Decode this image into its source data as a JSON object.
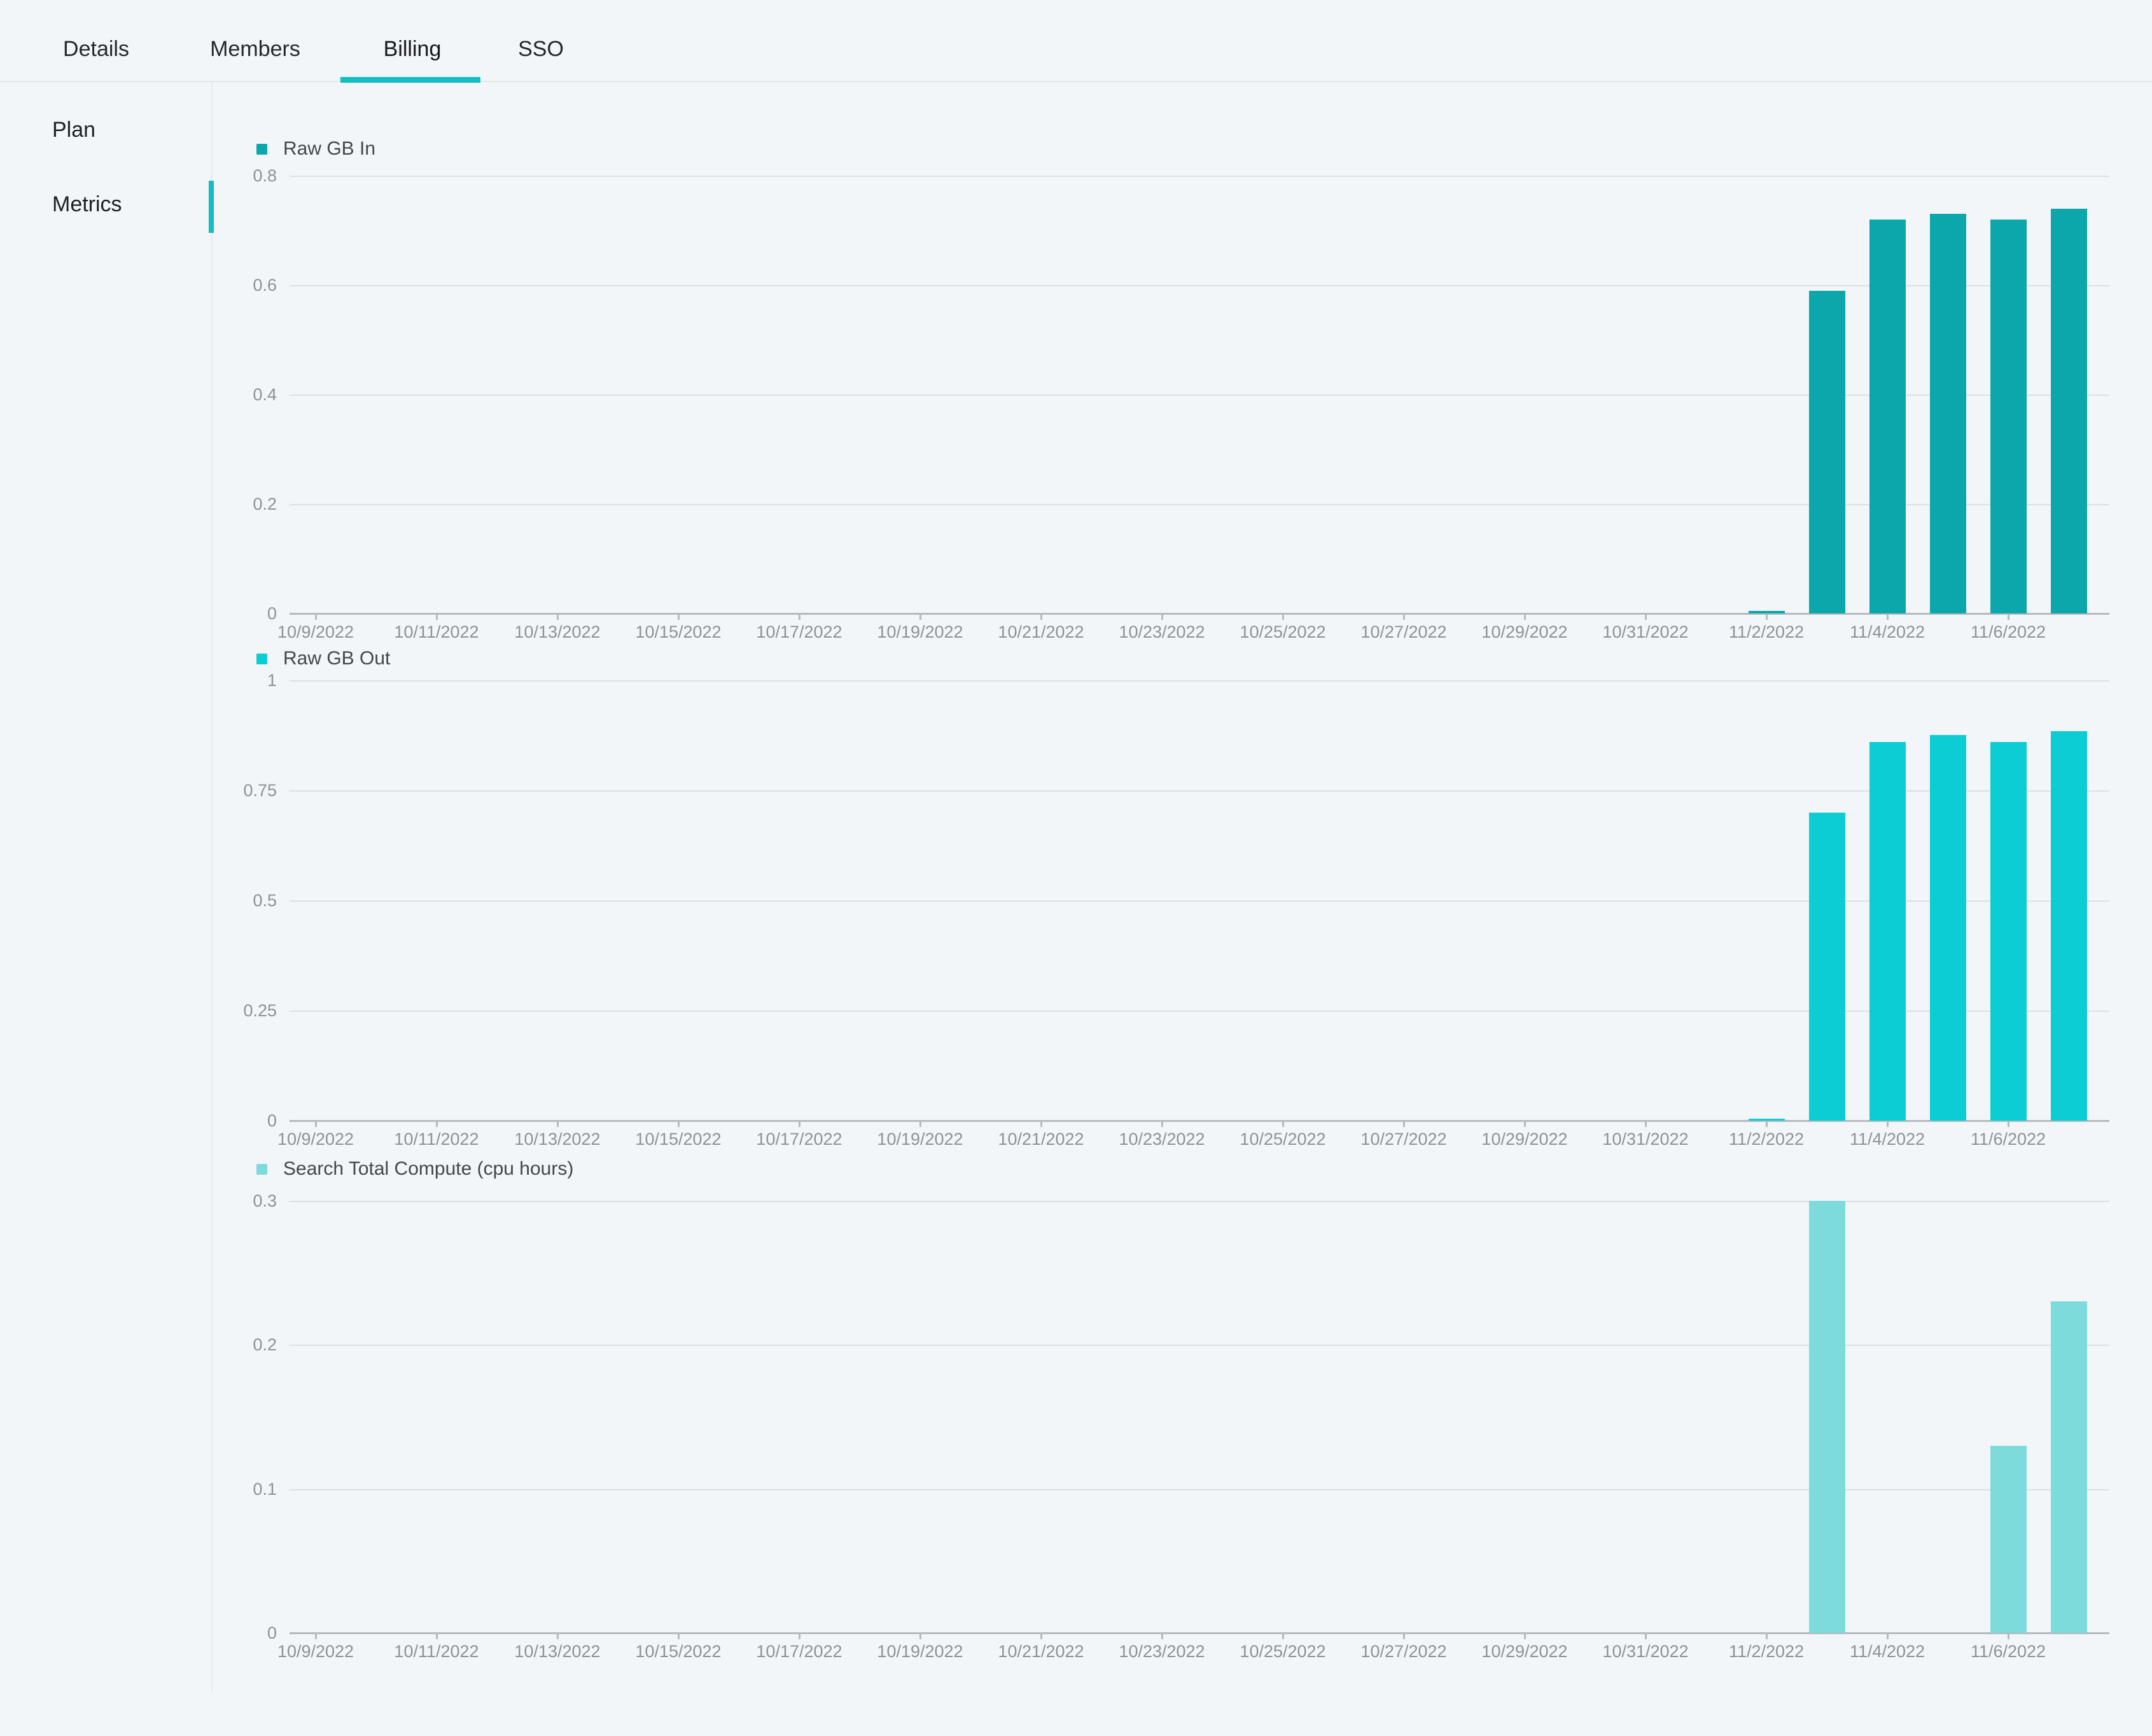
{
  "tabs": {
    "items": [
      {
        "label": "Details",
        "active": false
      },
      {
        "label": "Members",
        "active": false
      },
      {
        "label": "Billing",
        "active": true
      },
      {
        "label": "SSO",
        "active": false
      }
    ]
  },
  "sidebar": {
    "items": [
      {
        "label": "Plan",
        "active": false
      },
      {
        "label": "Metrics",
        "active": true
      }
    ]
  },
  "colors": {
    "background": "#f2f6f8",
    "accent_teal": "#11bfc3",
    "raw_gb_in_bar": "#0ba7ab",
    "raw_gb_out_bar": "#0cccd4",
    "search_compute_bar": "#7edbdc",
    "gridline": "#dde0e3",
    "axis_line": "#b7bbbf",
    "axis_label": "#8d9298"
  },
  "chart_data": [
    {
      "type": "bar",
      "title": "Raw GB In",
      "bar_color": "#0ba7ab",
      "x_start": "10/9/2022",
      "x_days": 30,
      "x_tick_labels": [
        "10/9/2022",
        "10/11/2022",
        "10/13/2022",
        "10/15/2022",
        "10/17/2022",
        "10/19/2022",
        "10/21/2022",
        "10/23/2022",
        "10/25/2022",
        "10/27/2022",
        "10/29/2022",
        "10/31/2022",
        "11/2/2022",
        "11/4/2022",
        "11/6/2022"
      ],
      "y_ticks": [
        "0.8",
        "0.6",
        "0.4",
        "0.2",
        "0"
      ],
      "ylim": [
        0,
        0.8
      ],
      "grid": true,
      "legend_position": "top-left",
      "bars": [
        {
          "date": "11/2/2022",
          "value": 0.005
        },
        {
          "date": "11/3/2022",
          "value": 0.59
        },
        {
          "date": "11/4/2022",
          "value": 0.72
        },
        {
          "date": "11/5/2022",
          "value": 0.73
        },
        {
          "date": "11/6/2022",
          "value": 0.72
        },
        {
          "date": "11/7/2022",
          "value": 0.74
        }
      ]
    },
    {
      "type": "bar",
      "title": "Raw GB Out",
      "bar_color": "#0cccd4",
      "x_start": "10/9/2022",
      "x_days": 30,
      "x_tick_labels": [
        "10/9/2022",
        "10/11/2022",
        "10/13/2022",
        "10/15/2022",
        "10/17/2022",
        "10/19/2022",
        "10/21/2022",
        "10/23/2022",
        "10/25/2022",
        "10/27/2022",
        "10/29/2022",
        "10/31/2022",
        "11/2/2022",
        "11/4/2022",
        "11/6/2022"
      ],
      "y_ticks": [
        "1",
        "0.75",
        "0.5",
        "0.25",
        "0"
      ],
      "ylim": [
        0,
        1
      ],
      "grid": true,
      "legend_position": "top-left",
      "bars": [
        {
          "date": "11/2/2022",
          "value": 0.004
        },
        {
          "date": "11/3/2022",
          "value": 0.7
        },
        {
          "date": "11/4/2022",
          "value": 0.86
        },
        {
          "date": "11/5/2022",
          "value": 0.875
        },
        {
          "date": "11/6/2022",
          "value": 0.86
        },
        {
          "date": "11/7/2022",
          "value": 0.885
        }
      ]
    },
    {
      "type": "bar",
      "title": "Search Total Compute (cpu hours)",
      "bar_color": "#7edbdc",
      "x_start": "10/9/2022",
      "x_days": 30,
      "x_tick_labels": [
        "10/9/2022",
        "10/11/2022",
        "10/13/2022",
        "10/15/2022",
        "10/17/2022",
        "10/19/2022",
        "10/21/2022",
        "10/23/2022",
        "10/25/2022",
        "10/27/2022",
        "10/29/2022",
        "10/31/2022",
        "11/2/2022",
        "11/4/2022",
        "11/6/2022"
      ],
      "y_ticks": [
        "0.3",
        "0.2",
        "0.1",
        "0"
      ],
      "ylim": [
        0,
        0.3
      ],
      "grid": true,
      "legend_position": "top-left",
      "bars": [
        {
          "date": "11/3/2022",
          "value": 0.3
        },
        {
          "date": "11/6/2022",
          "value": 0.13
        },
        {
          "date": "11/7/2022",
          "value": 0.23
        }
      ]
    }
  ]
}
